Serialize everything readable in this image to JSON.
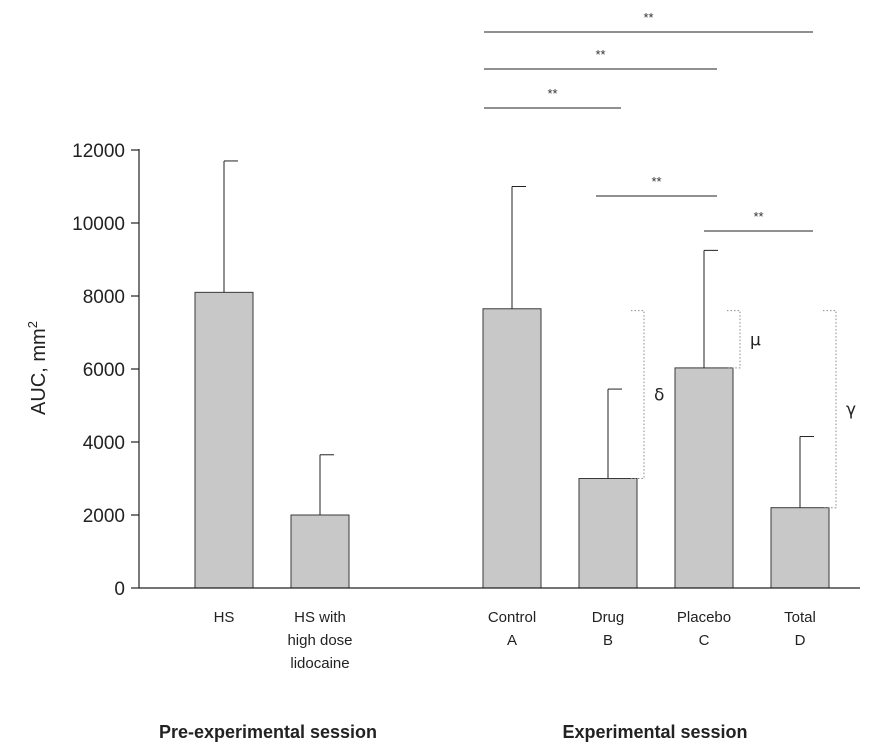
{
  "chart_data": {
    "type": "bar",
    "ylabel": "AUC, mm",
    "ylabel_superscript": "2",
    "ylim": [
      0,
      12000
    ],
    "yticks": [
      0,
      2000,
      4000,
      6000,
      8000,
      10000,
      12000
    ],
    "categories": [
      {
        "lines": [
          "HS"
        ],
        "value": 8100,
        "error": 11700,
        "group": 0
      },
      {
        "lines": [
          "HS with",
          "high dose",
          "lidocaine"
        ],
        "value": 2000,
        "error": 3650,
        "group": 0
      },
      {
        "lines": [
          "Control",
          "A"
        ],
        "value": 7650,
        "error": 11000,
        "group": 1
      },
      {
        "lines": [
          "Drug",
          "B"
        ],
        "value": 3000,
        "error": 5450,
        "group": 1
      },
      {
        "lines": [
          "Placebo",
          "C"
        ],
        "value": 6030,
        "error": 9250,
        "group": 1
      },
      {
        "lines": [
          "Total",
          "D"
        ],
        "value": 2200,
        "error": 4150,
        "group": 1
      }
    ],
    "groups": [
      "Pre-experimental session",
      "Experimental session"
    ],
    "significance": [
      {
        "from": 2,
        "to": 5,
        "label": "**"
      },
      {
        "from": 2,
        "to": 4,
        "label": "**"
      },
      {
        "from": 2,
        "to": 3,
        "label": "**"
      },
      {
        "from": 3,
        "to": 4,
        "label": "**"
      },
      {
        "from": 4,
        "to": 5,
        "label": "**"
      }
    ],
    "differences": [
      {
        "bar": 3,
        "top": 7600,
        "bottom": 3000,
        "label": "δ"
      },
      {
        "bar": 4,
        "top": 7600,
        "bottom": 6030,
        "label": "μ"
      },
      {
        "bar": 5,
        "top": 7600,
        "bottom": 2200,
        "label": "γ"
      }
    ],
    "colors": {
      "bar_fill": "#c8c8c8",
      "bar_stroke": "#3a3a3a",
      "line": "#222222",
      "dotted": "#8a8a8a"
    }
  }
}
